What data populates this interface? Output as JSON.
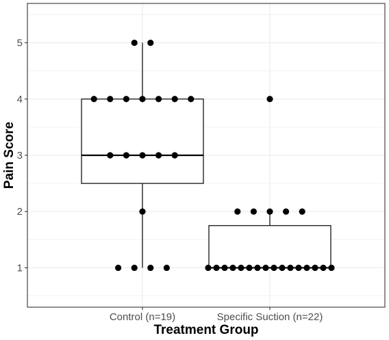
{
  "chart_data": {
    "type": "box",
    "title": "",
    "xlabel": "Treatment Group",
    "ylabel": "Pain Score",
    "categories": [
      "Control (n=19)",
      "Specific Suction (n=22)"
    ],
    "ylim": [
      0.3,
      5.7
    ],
    "yticks": [
      1,
      2,
      3,
      4,
      5
    ],
    "grid": true,
    "legend": "none",
    "boxes": [
      {
        "category": "Control (n=19)",
        "whisker_low": 1,
        "q1": 2.5,
        "median": 3,
        "q3": 4,
        "whisker_high": 5
      },
      {
        "category": "Specific Suction (n=22)",
        "whisker_low": 1,
        "q1": 1,
        "median": 1,
        "q3": 1.75,
        "whisker_high": 2
      }
    ],
    "points": [
      {
        "category": "Control (n=19)",
        "values": [
          5,
          5,
          4,
          4,
          4,
          4,
          4,
          4,
          4,
          3,
          3,
          3,
          3,
          3,
          2,
          1,
          1,
          1,
          1
        ]
      },
      {
        "category": "Specific Suction (n=22)",
        "values": [
          4,
          2,
          2,
          2,
          2,
          2,
          1,
          1,
          1,
          1,
          1,
          1,
          1,
          1,
          1,
          1,
          1,
          1,
          1,
          1,
          1,
          1
        ]
      }
    ],
    "colors": {
      "box_line": "#000000",
      "point": "#000000",
      "panel_border": "#333333",
      "grid": "#ebebeb",
      "tick_text": "#4d4d4d"
    }
  }
}
